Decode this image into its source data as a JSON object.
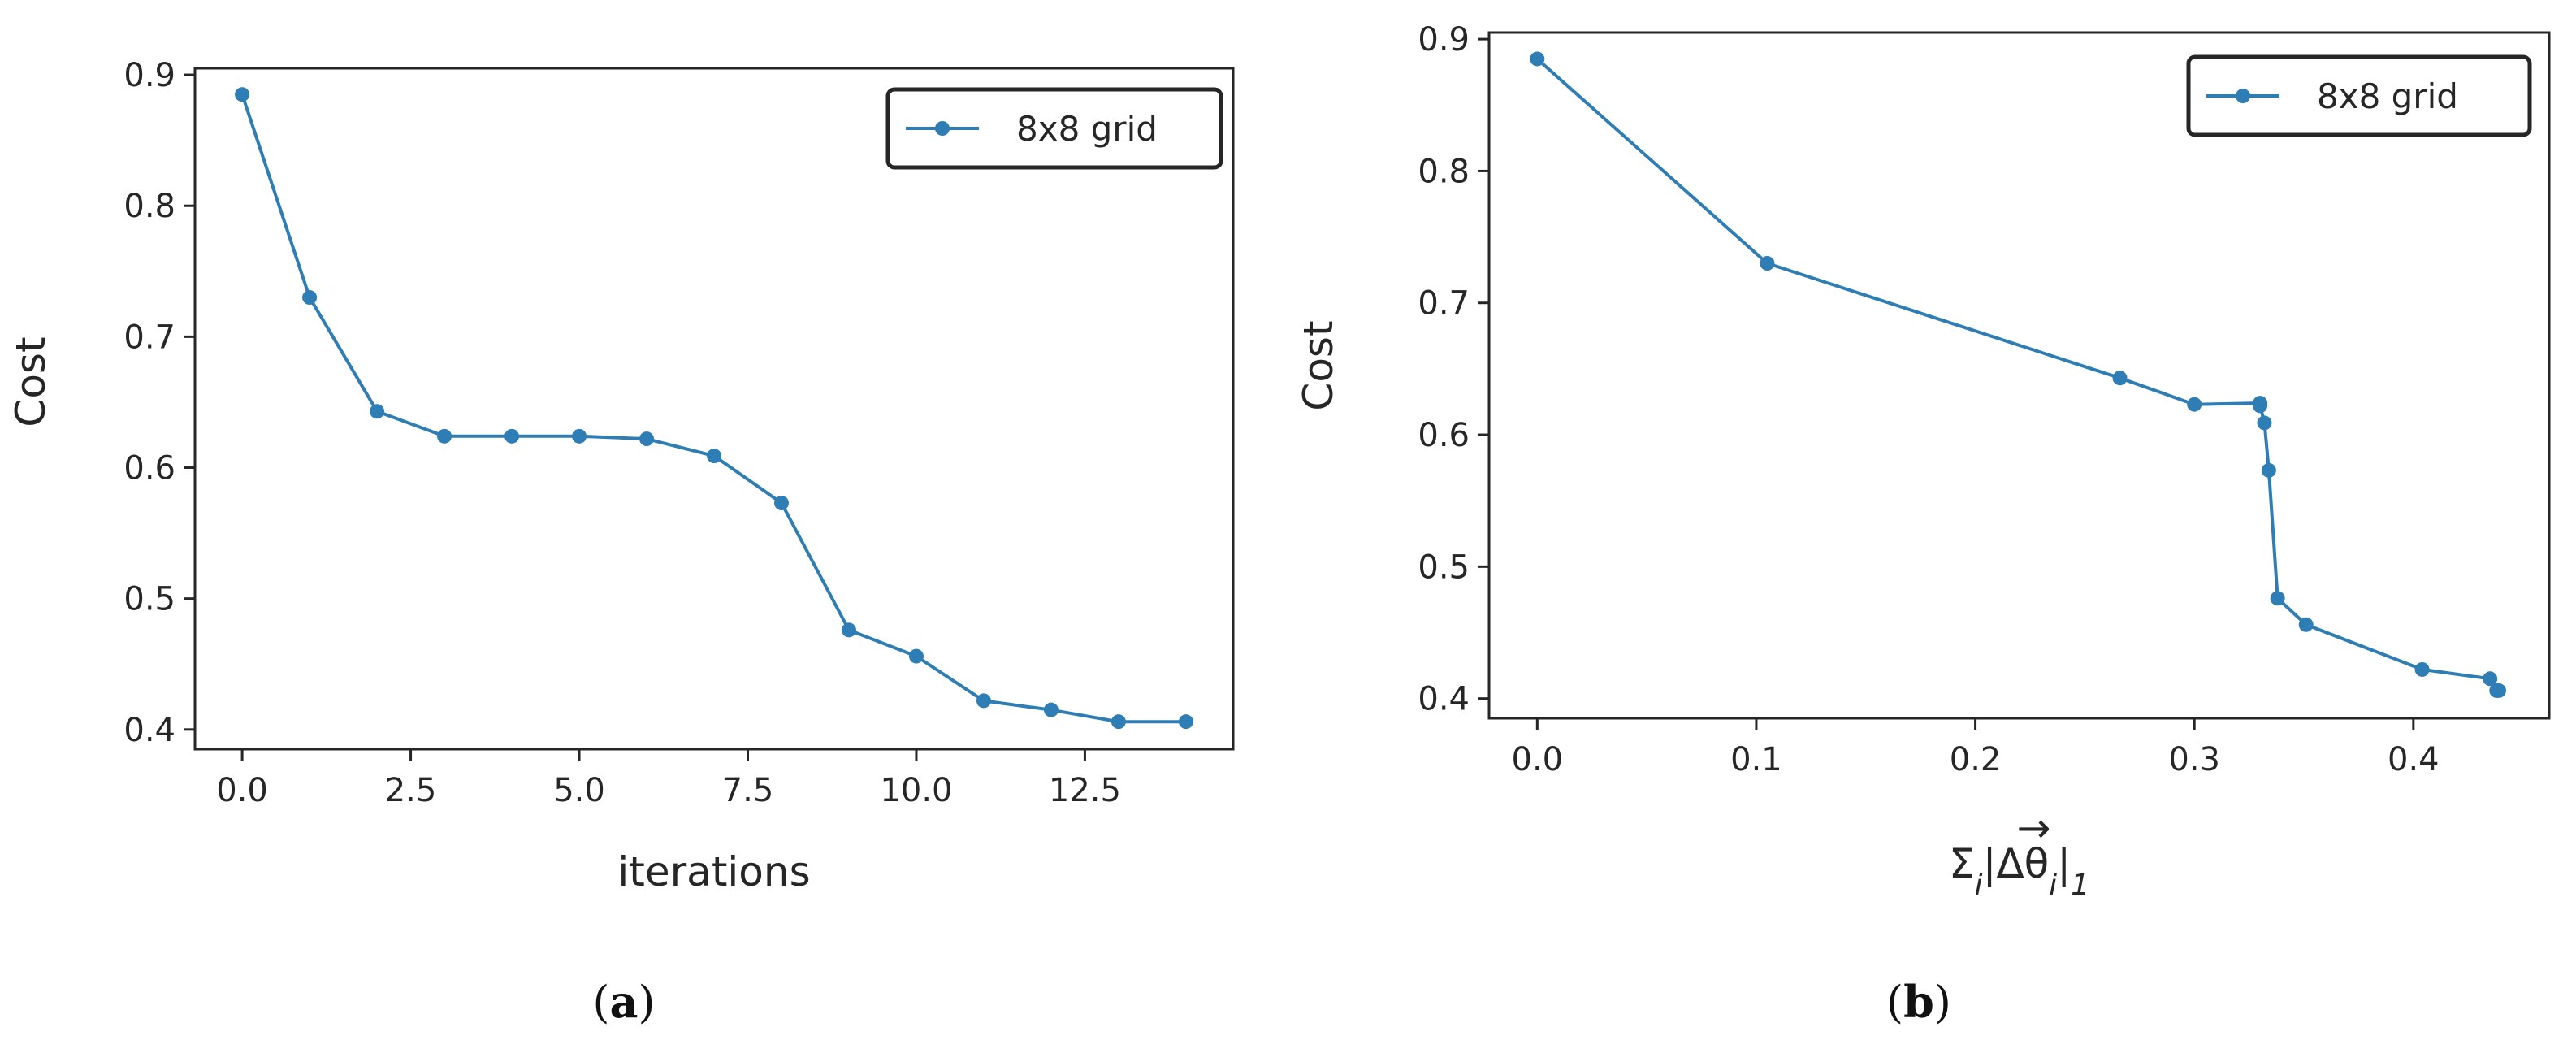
{
  "colors": {
    "series": "#2e7db4",
    "axis": "#262626",
    "background": "#ffffff"
  },
  "chart_data": [
    {
      "type": "line",
      "panel_label": "a",
      "ylabel": "Cost",
      "xlabel": "iterations",
      "xlim": [
        -0.7,
        14.7
      ],
      "ylim": [
        0.385,
        0.905
      ],
      "xticks": [
        0.0,
        2.5,
        5.0,
        7.5,
        10.0,
        12.5
      ],
      "xtick_labels": [
        "0.0",
        "2.5",
        "5.0",
        "7.5",
        "10.0",
        "12.5"
      ],
      "yticks": [
        0.4,
        0.5,
        0.6,
        0.7,
        0.8,
        0.9
      ],
      "ytick_labels": [
        "0.4",
        "0.5",
        "0.6",
        "0.7",
        "0.8",
        "0.9"
      ],
      "legend": "top-right",
      "series": [
        {
          "name": "8x8 grid",
          "x": [
            0,
            1,
            2,
            3,
            4,
            5,
            6,
            7,
            8,
            9,
            10,
            11,
            12,
            13,
            14
          ],
          "y": [
            0.885,
            0.73,
            0.643,
            0.624,
            0.624,
            0.624,
            0.622,
            0.609,
            0.573,
            0.476,
            0.456,
            0.422,
            0.415,
            0.406,
            0.406
          ]
        }
      ]
    },
    {
      "type": "line",
      "panel_label": "b",
      "ylabel": "Cost",
      "xlabel_prefix": "Σ",
      "xlabel_sub_i": "i",
      "xlabel_mid": "|Δθ",
      "xlabel_arrow": "→",
      "xlabel_suffix": "|",
      "xlabel_sub_1": "1",
      "xlim": [
        -0.022,
        0.462
      ],
      "ylim": [
        0.385,
        0.905
      ],
      "xticks": [
        0.0,
        0.1,
        0.2,
        0.3,
        0.4
      ],
      "xtick_labels": [
        "0.0",
        "0.1",
        "0.2",
        "0.3",
        "0.4"
      ],
      "yticks": [
        0.4,
        0.5,
        0.6,
        0.7,
        0.8,
        0.9
      ],
      "ytick_labels": [
        "0.4",
        "0.5",
        "0.6",
        "0.7",
        "0.8",
        "0.9"
      ],
      "legend": "top-right",
      "series": [
        {
          "name": "8x8 grid",
          "x": [
            0.0,
            0.105,
            0.266,
            0.3,
            0.33,
            0.33,
            0.332,
            0.334,
            0.338,
            0.351,
            0.404,
            0.435,
            0.438,
            0.439
          ],
          "y": [
            0.885,
            0.73,
            0.643,
            0.623,
            0.624,
            0.622,
            0.609,
            0.573,
            0.476,
            0.456,
            0.422,
            0.415,
            0.406,
            0.406
          ]
        }
      ]
    }
  ]
}
